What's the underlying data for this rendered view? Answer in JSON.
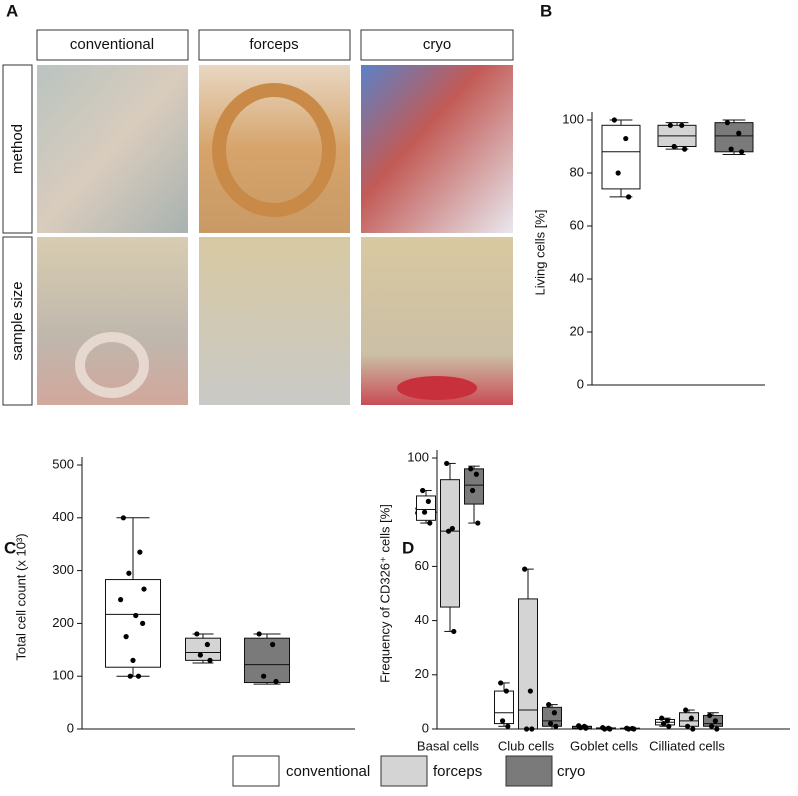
{
  "figure": {
    "panel_labels": [
      "A",
      "B",
      "C",
      "D"
    ],
    "photo_columns": [
      "conventional",
      "forceps",
      "cryo"
    ],
    "photo_rows": [
      "method",
      "sample size"
    ]
  },
  "legend": {
    "entries": [
      {
        "name": "conventional",
        "color": "#ffffff"
      },
      {
        "name": "forceps",
        "color": "#d4d4d4"
      },
      {
        "name": "cryo",
        "color": "#7a7a7a"
      }
    ]
  },
  "chart_data": [
    {
      "type": "box",
      "ylabel": "Living cells [%]",
      "ylim": [
        0,
        100
      ],
      "yticks": [
        0,
        20,
        40,
        60,
        80,
        100
      ],
      "series": [
        {
          "name": "conventional",
          "color": "#ffffff",
          "boxes": [
            {
              "min": 71,
              "q1": 74,
              "median": 88,
              "q3": 98,
              "max": 100,
              "points": [
                100,
                93,
                80,
                71
              ]
            }
          ]
        },
        {
          "name": "forceps",
          "color": "#d4d4d4",
          "boxes": [
            {
              "min": 89,
              "q1": 90,
              "median": 94,
              "q3": 98,
              "max": 99,
              "points": [
                98,
                98,
                90,
                89
              ]
            }
          ]
        },
        {
          "name": "cryo",
          "color": "#7a7a7a",
          "boxes": [
            {
              "min": 87,
              "q1": 88,
              "median": 94,
              "q3": 99,
              "max": 100,
              "points": [
                99,
                95,
                89,
                88
              ]
            }
          ]
        }
      ]
    },
    {
      "type": "box",
      "ylabel": "Total cell count (x 10³)",
      "ylim": [
        0,
        500
      ],
      "yticks": [
        0,
        100,
        200,
        300,
        400,
        500
      ],
      "series": [
        {
          "name": "conventional",
          "color": "#ffffff",
          "boxes": [
            {
              "min": 100,
              "q1": 117,
              "median": 217,
              "q3": 283,
              "max": 400,
              "points": [
                400,
                335,
                295,
                265,
                245,
                215,
                200,
                175,
                130,
                100,
                100
              ]
            }
          ]
        },
        {
          "name": "forceps",
          "color": "#d4d4d4",
          "boxes": [
            {
              "min": 125,
              "q1": 130,
              "median": 145,
              "q3": 172,
              "max": 180,
              "points": [
                180,
                160,
                140,
                130
              ]
            }
          ]
        },
        {
          "name": "cryo",
          "color": "#7a7a7a",
          "boxes": [
            {
              "min": 85,
              "q1": 88,
              "median": 122,
              "q3": 172,
              "max": 180,
              "points": [
                180,
                160,
                100,
                90
              ]
            }
          ]
        }
      ]
    },
    {
      "type": "box",
      "ylabel": "Frequency of CD326⁺ cells [%]",
      "ylim": [
        0,
        100
      ],
      "yticks": [
        0,
        20,
        40,
        60,
        80,
        100
      ],
      "categories": [
        "Basal cells",
        "Club cells",
        "Goblet cells",
        "Cilliated cells"
      ],
      "series": [
        {
          "name": "conventional",
          "color": "#ffffff",
          "boxes": [
            {
              "min": 76,
              "q1": 77,
              "median": 81,
              "q3": 86,
              "max": 88,
              "points": [
                88,
                84,
                80,
                76
              ]
            },
            {
              "min": 1,
              "q1": 2,
              "median": 6,
              "q3": 14,
              "max": 17,
              "points": [
                17,
                14,
                3,
                1
              ]
            },
            {
              "min": 0,
              "q1": 0.3,
              "median": 0.8,
              "q3": 1,
              "max": 1.2,
              "points": [
                1.2,
                1,
                0.5,
                0.3
              ]
            },
            {
              "min": 1,
              "q1": 1.5,
              "median": 2.5,
              "q3": 3.5,
              "max": 4,
              "points": [
                4,
                3,
                2,
                1
              ]
            }
          ]
        },
        {
          "name": "forceps",
          "color": "#d4d4d4",
          "boxes": [
            {
              "min": 36,
              "q1": 45,
              "median": 73,
              "q3": 92,
              "max": 98,
              "points": [
                98,
                74,
                73,
                36
              ]
            },
            {
              "min": 0,
              "q1": 0,
              "median": 7,
              "q3": 48,
              "max": 59,
              "points": [
                59,
                14,
                0,
                0
              ]
            },
            {
              "min": 0,
              "q1": 0,
              "median": 0.2,
              "q3": 0.4,
              "max": 0.5,
              "points": [
                0.5,
                0.3,
                0,
                0
              ]
            },
            {
              "min": 0,
              "q1": 1,
              "median": 3,
              "q3": 6,
              "max": 7,
              "points": [
                7,
                4,
                1,
                0
              ]
            }
          ]
        },
        {
          "name": "cryo",
          "color": "#7a7a7a",
          "boxes": [
            {
              "min": 76,
              "q1": 83,
              "median": 90,
              "q3": 96,
              "max": 97,
              "points": [
                96,
                94,
                88,
                76
              ]
            },
            {
              "min": 0,
              "q1": 1,
              "median": 3,
              "q3": 8,
              "max": 9,
              "points": [
                9,
                6,
                2,
                1
              ]
            },
            {
              "min": 0,
              "q1": 0,
              "median": 0.1,
              "q3": 0.3,
              "max": 0.4,
              "points": [
                0.3,
                0.2,
                0,
                0
              ]
            },
            {
              "min": 0,
              "q1": 1,
              "median": 2,
              "q3": 5,
              "max": 6,
              "points": [
                5,
                3,
                1,
                0
              ]
            }
          ]
        }
      ]
    }
  ]
}
